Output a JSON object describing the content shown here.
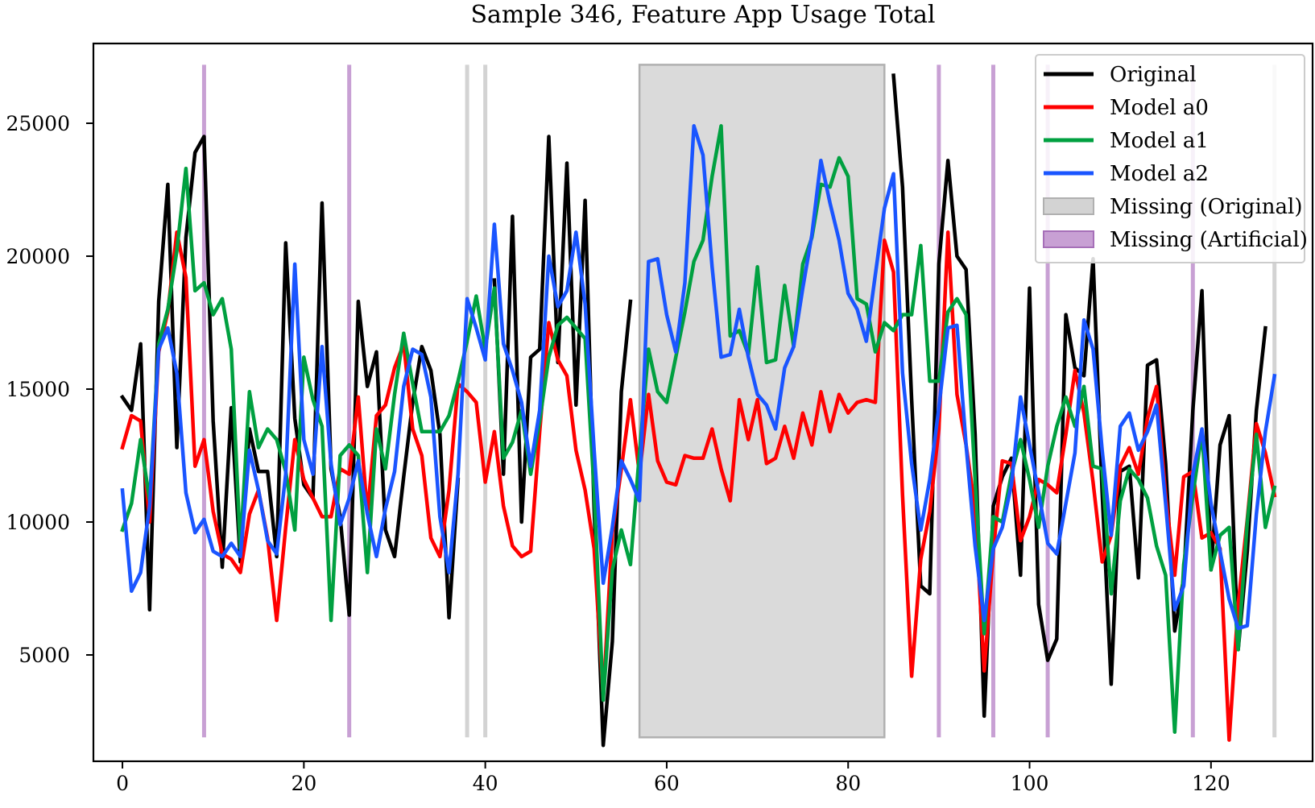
{
  "chart_data": {
    "type": "line",
    "title": "Sample 346, Feature App Usage Total",
    "xlabel": "",
    "ylabel": "",
    "xlim": [
      -3.2,
      131.2
    ],
    "ylim": [
      1000,
      28000
    ],
    "xticks": [
      0,
      20,
      40,
      60,
      80,
      100,
      120
    ],
    "yticks": [
      5000,
      10000,
      15000,
      20000,
      25000
    ],
    "grid": false,
    "legend_position": "upper right",
    "legend": [
      {
        "label": "Original",
        "kind": "line",
        "color": "#000000"
      },
      {
        "label": "Model a0",
        "kind": "line",
        "color": "#ff0000"
      },
      {
        "label": "Model a1",
        "kind": "line",
        "color": "#00a040"
      },
      {
        "label": "Model a2",
        "kind": "line",
        "color": "#1a55ff"
      },
      {
        "label": "Missing (Original)",
        "kind": "patch",
        "color": "#d3d3d3"
      },
      {
        "label": "Missing (Artificial)",
        "kind": "patch",
        "color": "#c8a0d4"
      }
    ],
    "missing_original": {
      "single": [
        38,
        40,
        127
      ],
      "spans": [
        [
          57,
          84
        ]
      ],
      "color": "#d3d3d3"
    },
    "missing_artificial": {
      "single": [
        9,
        25,
        90,
        96,
        102,
        118
      ],
      "color": "#c8a0d4"
    },
    "series": [
      {
        "name": "Original",
        "color": "#000000",
        "values": [
          14700,
          14200,
          16700,
          6700,
          18300,
          22700,
          12800,
          20700,
          23900,
          24500,
          13800,
          8300,
          14300,
          8500,
          13500,
          11900,
          11900,
          8700,
          20500,
          13900,
          11400,
          10900,
          22000,
          12000,
          10200,
          6500,
          18300,
          15100,
          16400,
          9700,
          8700,
          11700,
          14500,
          16600,
          15700,
          13300,
          6400,
          11600,
          null,
          18200,
          null,
          19100,
          11800,
          21500,
          10000,
          16200,
          16500,
          24500,
          16000,
          23500,
          14400,
          22100,
          10500,
          1600,
          5500,
          14900,
          18300,
          null,
          null,
          null,
          null,
          null,
          null,
          null,
          null,
          null,
          null,
          null,
          null,
          null,
          null,
          null,
          null,
          null,
          null,
          null,
          null,
          null,
          null,
          null,
          null,
          null,
          null,
          null,
          null,
          26800,
          22600,
          14600,
          7600,
          7300,
          19700,
          23600,
          20000,
          19500,
          13300,
          2700,
          10600,
          11700,
          12400,
          8000,
          18800,
          6900,
          4800,
          5600,
          17800,
          15800,
          15500,
          19900,
          11100,
          3900,
          11900,
          12100,
          7900,
          15900,
          16100,
          12200,
          5900,
          7900,
          14200,
          18700,
          8200,
          12900,
          14000,
          5200,
          8900,
          14200,
          17300,
          null
        ]
      },
      {
        "name": "Model a0",
        "color": "#ff0000",
        "values": [
          12800,
          14000,
          13800,
          10000,
          16400,
          17900,
          20900,
          19200,
          12100,
          13100,
          10400,
          8800,
          8600,
          8100,
          10300,
          11200,
          9400,
          6300,
          9800,
          13100,
          11600,
          10900,
          10200,
          10200,
          12000,
          11800,
          14700,
          10300,
          14000,
          14400,
          15800,
          16700,
          13500,
          12500,
          9400,
          8700,
          11200,
          15200,
          14900,
          14500,
          11500,
          13400,
          10600,
          9100,
          8700,
          8900,
          13400,
          17500,
          16100,
          15500,
          12700,
          11200,
          9000,
          3400,
          9600,
          12000,
          14600,
          11800,
          14800,
          12300,
          11500,
          11400,
          12500,
          12400,
          12400,
          13500,
          12000,
          10800,
          14600,
          13100,
          14600,
          12200,
          12400,
          13600,
          12400,
          14100,
          12900,
          14900,
          13400,
          14800,
          14100,
          14500,
          14600,
          14500,
          20600,
          19400,
          11000,
          4200,
          8600,
          10400,
          13500,
          20900,
          14800,
          12900,
          10500,
          4400,
          8900,
          12300,
          12200,
          9300,
          10200,
          11600,
          11400,
          11100,
          13300,
          15700,
          14100,
          11500,
          8500,
          9500,
          12100,
          12800,
          11800,
          13900,
          15100,
          11000,
          8000,
          11700,
          11900,
          9400,
          9600,
          9000,
          1800,
          6900,
          10100,
          13700,
          12600,
          11000
        ]
      },
      {
        "name": "Model a1",
        "color": "#00a040",
        "values": [
          9700,
          10700,
          13100,
          10800,
          16700,
          18000,
          20200,
          23300,
          18700,
          19000,
          17800,
          18400,
          16500,
          9000,
          14900,
          12800,
          13500,
          13100,
          11900,
          9700,
          16200,
          14600,
          13600,
          6300,
          12500,
          12900,
          12500,
          8100,
          13500,
          12000,
          14800,
          17100,
          15200,
          13400,
          13400,
          13400,
          14000,
          15300,
          16800,
          18500,
          16500,
          18800,
          12400,
          13000,
          14200,
          11800,
          13800,
          16200,
          17400,
          17700,
          17300,
          16900,
          11200,
          3300,
          8200,
          9700,
          8400,
          12600,
          16500,
          14900,
          14500,
          16200,
          17900,
          19800,
          20600,
          23000,
          24900,
          17000,
          17200,
          16300,
          19600,
          16000,
          16100,
          18900,
          16600,
          19700,
          20700,
          22700,
          22600,
          23700,
          23000,
          18400,
          18200,
          16400,
          17500,
          17200,
          17800,
          17800,
          20400,
          15300,
          15300,
          17900,
          18400,
          17800,
          11600,
          5800,
          10200,
          10000,
          11800,
          13100,
          11600,
          9800,
          12100,
          13600,
          14700,
          13600,
          15100,
          12100,
          12000,
          7300,
          10800,
          12000,
          11600,
          10900,
          9100,
          8000,
          2100,
          8400,
          11000,
          13400,
          8200,
          9500,
          9800,
          5200,
          10000,
          13300,
          9800,
          11300
        ]
      },
      {
        "name": "Model a2",
        "color": "#1a55ff",
        "values": [
          11200,
          7400,
          8100,
          10600,
          16500,
          17300,
          15600,
          11100,
          9600,
          10100,
          8900,
          8700,
          9200,
          8700,
          12700,
          11200,
          9300,
          8800,
          11800,
          19700,
          13100,
          11800,
          16600,
          12200,
          9900,
          10900,
          12300,
          10300,
          8700,
          10500,
          11900,
          15100,
          16500,
          16300,
          14700,
          10200,
          8100,
          11800,
          18400,
          17300,
          16100,
          21200,
          16700,
          15700,
          14500,
          12100,
          14200,
          20000,
          18100,
          18700,
          20900,
          18200,
          12700,
          7700,
          9800,
          12300,
          11600,
          10800,
          19800,
          19900,
          17800,
          16400,
          19000,
          24900,
          23800,
          19600,
          16200,
          16300,
          18000,
          16200,
          14800,
          14400,
          13500,
          15800,
          16600,
          18800,
          20800,
          23600,
          22000,
          20600,
          18600,
          18000,
          16800,
          19300,
          21800,
          23100,
          15600,
          12200,
          9700,
          11600,
          14300,
          17300,
          17400,
          12900,
          9100,
          6300,
          9000,
          9800,
          11400,
          14700,
          12900,
          11100,
          9200,
          8800,
          10700,
          12600,
          17600,
          16500,
          12700,
          9500,
          13600,
          14100,
          12700,
          13400,
          14400,
          10700,
          6700,
          7600,
          11800,
          13500,
          10700,
          8900,
          7100,
          6000,
          6100,
          10300,
          13400,
          15500
        ]
      }
    ]
  }
}
